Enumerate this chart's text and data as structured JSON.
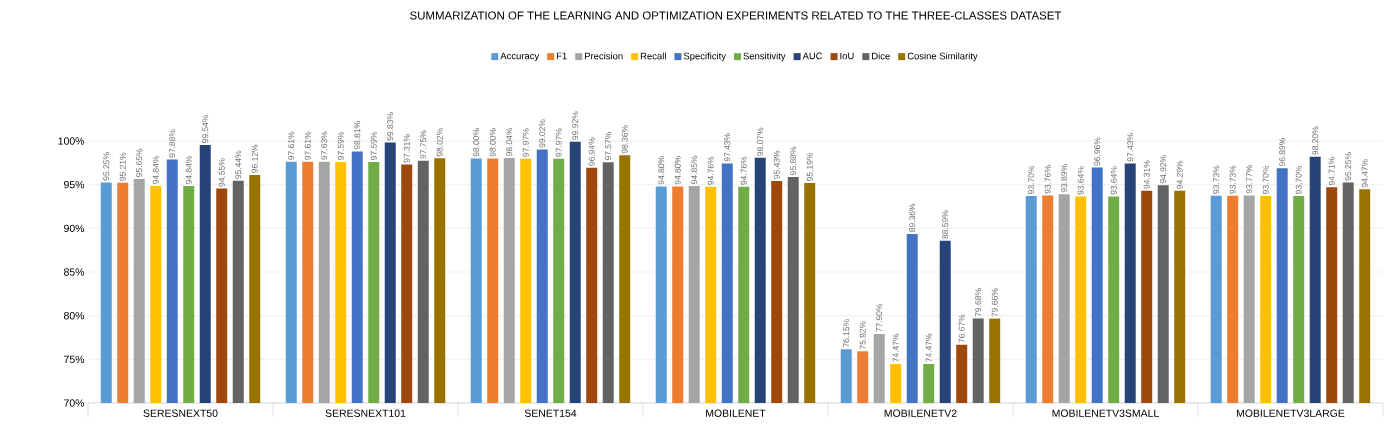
{
  "chart_data": {
    "type": "bar",
    "title": "SUMMARIZATION OF THE LEARNING AND OPTIMIZATION EXPERIMENTS RELATED TO THE THREE-CLASSES DATASET",
    "categories": [
      "SERESNEXT50",
      "SERESNEXT101",
      "SENET154",
      "MOBILENET",
      "MOBILENETV2",
      "MOBILENETV3SMALL",
      "MOBILENETV3LARGE"
    ],
    "series": [
      {
        "name": "Accuracy",
        "color": "#5b9bd5",
        "values": [
          95.25,
          97.61,
          98.0,
          94.8,
          76.15,
          93.7,
          93.73
        ],
        "value_labels": [
          "95.25%",
          "97.61%",
          "98.00%",
          "94.80%",
          "76.15%",
          "93.70%",
          "93.73%"
        ]
      },
      {
        "name": "F1",
        "color": "#ed7d31",
        "values": [
          95.21,
          97.61,
          98.0,
          94.8,
          75.92,
          93.76,
          93.73
        ],
        "value_labels": [
          "95.21%",
          "97.61%",
          "98.00%",
          "94.80%",
          "75.92%",
          "93.76%",
          "93.73%"
        ]
      },
      {
        "name": "Precision",
        "color": "#a5a5a5",
        "values": [
          95.65,
          97.63,
          98.04,
          94.85,
          77.9,
          93.89,
          93.77
        ],
        "value_labels": [
          "95.65%",
          "97.63%",
          "98.04%",
          "94.85%",
          "77.90%",
          "93.89%",
          "93.77%"
        ]
      },
      {
        "name": "Recall",
        "color": "#ffc000",
        "values": [
          94.84,
          97.59,
          97.97,
          94.76,
          74.47,
          93.64,
          93.7
        ],
        "value_labels": [
          "94.84%",
          "97.59%",
          "97.97%",
          "94.76%",
          "74.47%",
          "93.64%",
          "93.70%"
        ]
      },
      {
        "name": "Specificity",
        "color": "#4472c4",
        "values": [
          97.88,
          98.81,
          99.02,
          97.43,
          89.36,
          96.96,
          96.89
        ],
        "value_labels": [
          "97.88%",
          "98.81%",
          "99.02%",
          "97.43%",
          "89.36%",
          "96.96%",
          "96.89%"
        ]
      },
      {
        "name": "Sensitivity",
        "color": "#70ad47",
        "values": [
          94.84,
          97.59,
          97.97,
          94.76,
          74.47,
          93.64,
          93.7
        ],
        "value_labels": [
          "94.84%",
          "97.59%",
          "97.97%",
          "94.76%",
          "74.47%",
          "93.64%",
          "93.70%"
        ]
      },
      {
        "name": "AUC",
        "color": "#264478",
        "values": [
          99.54,
          99.83,
          99.92,
          98.07,
          88.59,
          97.43,
          98.2
        ],
        "value_labels": [
          "99.54%",
          "99.83%",
          "99.92%",
          "98.07%",
          "88.59%",
          "97.43%",
          "98.20%"
        ]
      },
      {
        "name": "IoU",
        "color": "#9e480e",
        "values": [
          94.55,
          97.31,
          96.94,
          95.43,
          76.67,
          94.31,
          94.71
        ],
        "value_labels": [
          "94.55%",
          "97.31%",
          "96.94%",
          "95.43%",
          "76.67%",
          "94.31%",
          "94.71%"
        ]
      },
      {
        "name": "Dice",
        "color": "#636363",
        "values": [
          95.44,
          97.75,
          97.57,
          95.88,
          79.68,
          94.92,
          95.25
        ],
        "value_labels": [
          "95.44%",
          "97.75%",
          "97.57%",
          "95.88%",
          "79.68%",
          "94.92%",
          "95.25%"
        ]
      },
      {
        "name": "Cosine Similarity",
        "color": "#997300",
        "values": [
          96.12,
          98.02,
          98.36,
          95.19,
          79.66,
          94.29,
          94.47
        ],
        "value_labels": [
          "96.12%",
          "98.02%",
          "98.36%",
          "95.19%",
          "79.66%",
          "94.29%",
          "94.47%"
        ]
      }
    ],
    "ylim": [
      70,
      100
    ],
    "yticks": [
      {
        "value": 70,
        "label": "70%"
      },
      {
        "value": 75,
        "label": "75%"
      },
      {
        "value": 80,
        "label": "80%"
      },
      {
        "value": 85,
        "label": "85%"
      },
      {
        "value": 90,
        "label": "90%"
      },
      {
        "value": 95,
        "label": "95%"
      },
      {
        "value": 100,
        "label": "100%"
      }
    ],
    "grid": "y",
    "legend": "top"
  }
}
